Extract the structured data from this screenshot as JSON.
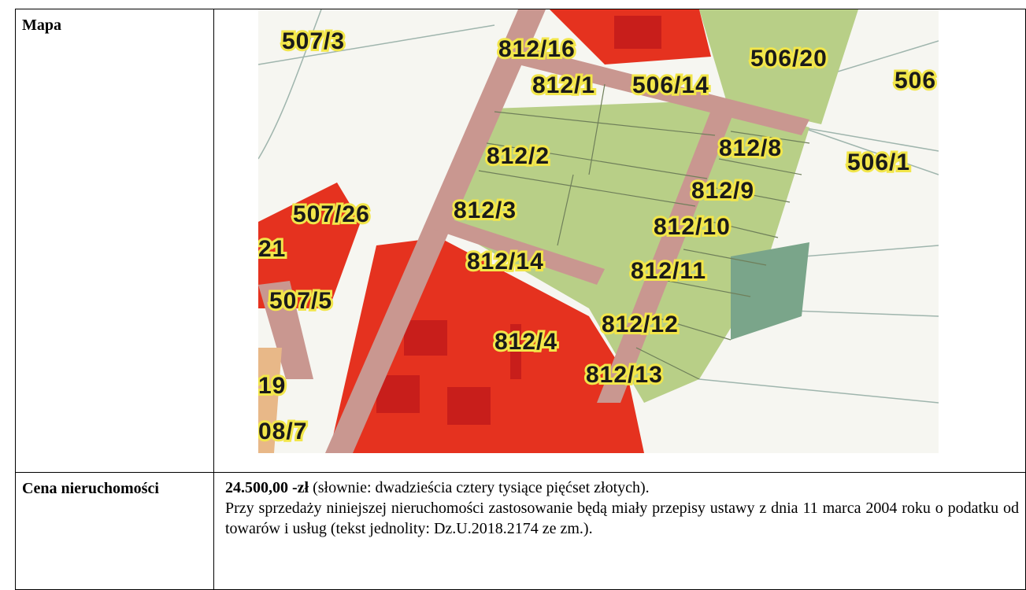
{
  "map_row": {
    "label": "Mapa",
    "parcels": [
      {
        "id": "p1",
        "text": "507/3"
      },
      {
        "id": "p2",
        "text": "812/16"
      },
      {
        "id": "p3",
        "text": "506/20"
      },
      {
        "id": "p4",
        "text": "506"
      },
      {
        "id": "p5",
        "text": "812/1"
      },
      {
        "id": "p6",
        "text": "506/14"
      },
      {
        "id": "p7",
        "text": "812/8"
      },
      {
        "id": "p8",
        "text": "506/1"
      },
      {
        "id": "p9",
        "text": "812/2"
      },
      {
        "id": "p10",
        "text": "812/9"
      },
      {
        "id": "p11",
        "text": "507/26"
      },
      {
        "id": "p12",
        "text": "812/3"
      },
      {
        "id": "p13",
        "text": "812/10"
      },
      {
        "id": "p14",
        "text": "21"
      },
      {
        "id": "p15",
        "text": "812/14"
      },
      {
        "id": "p16",
        "text": "812/11"
      },
      {
        "id": "p17",
        "text": "507/5"
      },
      {
        "id": "p18",
        "text": "812/12"
      },
      {
        "id": "p19",
        "text": "812/4"
      },
      {
        "id": "p20",
        "text": "19"
      },
      {
        "id": "p21",
        "text": "812/13"
      },
      {
        "id": "p22",
        "text": "08/7"
      }
    ]
  },
  "price_row": {
    "label": "Cena nieruchomości",
    "price": "24.500,00 -zł",
    "price_words": " (słownie: dwadzieścia cztery tysiące pięćset złotych).",
    "note": "Przy sprzedaży niniejszej nieruchomości zastosowanie będą miały przepisy ustawy z dnia 11 marca 2004 roku o podatku od towarów i usług (tekst jednolity: Dz.U.2018.2174 ze zm.)."
  },
  "colors": {
    "road": "#c99790",
    "parcel_green": "#b8cf87",
    "built_red": "#e5321f",
    "building": "#c81e1b",
    "label_halo": "#f2e64a",
    "meadow": "#7aa58a"
  }
}
